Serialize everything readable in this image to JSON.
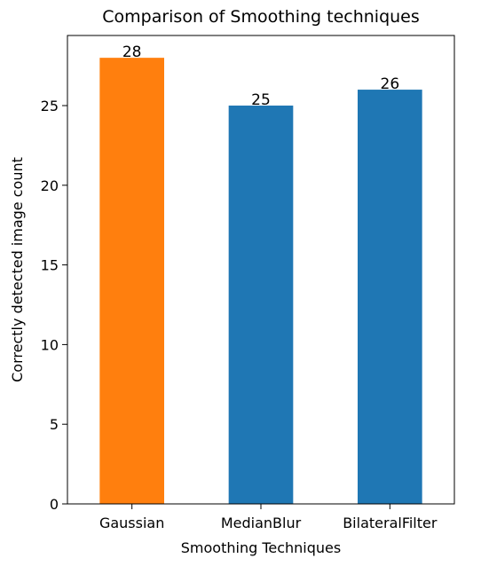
{
  "chart_data": {
    "type": "bar",
    "title": "Comparison of Smoothing techniques",
    "xlabel": "Smoothing Techniques",
    "ylabel": "Correctly detected image count",
    "categories": [
      "Gaussian",
      "MedianBlur",
      "BilateralFilter"
    ],
    "values": [
      28,
      25,
      26
    ],
    "bar_colors": [
      "#ff7f0e",
      "#1f77b4",
      "#1f77b4"
    ],
    "data_labels": [
      "28",
      "25",
      "26"
    ],
    "ylim": [
      0,
      29.4
    ],
    "yticks": [
      0,
      5,
      10,
      15,
      20,
      25
    ],
    "grid": false,
    "legend": "none"
  }
}
